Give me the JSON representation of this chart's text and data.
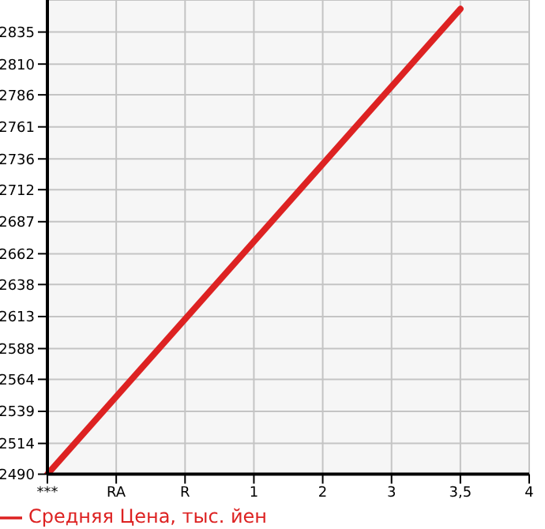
{
  "chart_data": {
    "type": "line",
    "categories": [
      "***",
      "RA",
      "R",
      "1",
      "2",
      "3",
      "3,5",
      "4"
    ],
    "series": [
      {
        "name": "Средняя Цена, тыс. йен",
        "color": "#dd2222",
        "values": [
          2490,
          null,
          null,
          null,
          null,
          null,
          2853,
          null
        ]
      }
    ],
    "ylim": [
      2490,
      2860
    ],
    "yticks": [
      2490,
      2514,
      2539,
      2564,
      2588,
      2613,
      2638,
      2662,
      2687,
      2712,
      2736,
      2761,
      2786,
      2810,
      2835
    ],
    "grid": true,
    "legend": "bottom left",
    "marker": "none",
    "line_style": "solid"
  }
}
